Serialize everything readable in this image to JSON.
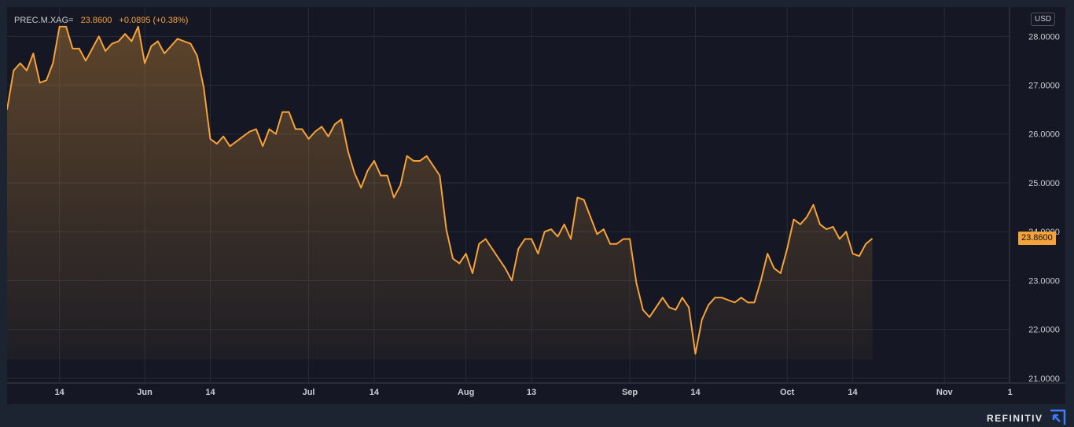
{
  "legend": {
    "symbol": "PREC.M.XAG=",
    "last": "23.8600",
    "change": "+0.0895 (+0.38%)"
  },
  "currency": "USD",
  "last_price_tag": "23.8600",
  "brand": "REFINITIV",
  "colors": {
    "line": "#f5a23a",
    "background": "#151824",
    "outer": "#1c2331",
    "grid": "#262b38",
    "text": "#c9ccd3"
  },
  "chart_data": {
    "type": "area",
    "series": [
      {
        "values": [
          26.5,
          27.3,
          27.45,
          27.3,
          27.65,
          27.05,
          27.1,
          27.45,
          28.2,
          28.2,
          27.75,
          27.75,
          27.5,
          27.75,
          28.0,
          27.7,
          27.85,
          27.9,
          28.05,
          27.9,
          28.2,
          27.45,
          27.8,
          27.9,
          27.65,
          27.8,
          27.95,
          27.9,
          27.85,
          27.6,
          26.95,
          25.9,
          25.8,
          25.95,
          25.75,
          25.85,
          25.95,
          26.05,
          26.1,
          25.75,
          26.1,
          26.0,
          26.45,
          26.45,
          26.1,
          26.1,
          25.9,
          26.05,
          26.15,
          25.95,
          26.2,
          26.3,
          25.65,
          25.2,
          24.9,
          25.25,
          25.45,
          25.15,
          25.15,
          24.7,
          24.95,
          25.55,
          25.45,
          25.45,
          25.55,
          25.35,
          25.15,
          24.05,
          23.45,
          23.35,
          23.55,
          23.15,
          23.75,
          23.85,
          23.65,
          23.45,
          23.25,
          23.0,
          23.65,
          23.85,
          23.85,
          23.55,
          24.0,
          24.05,
          23.9,
          24.15,
          23.85,
          24.7,
          24.65,
          24.3,
          23.95,
          24.05,
          23.75,
          23.75,
          23.85,
          23.85,
          22.95,
          22.4,
          22.25,
          22.45,
          22.65,
          22.45,
          22.4,
          22.65,
          22.45,
          21.5,
          22.2,
          22.5,
          22.65,
          22.65,
          22.6,
          22.55,
          22.65,
          22.55,
          22.55,
          23.0,
          23.55,
          23.25,
          23.15,
          23.65,
          24.25,
          24.15,
          24.3,
          24.55,
          24.15,
          24.05,
          24.1,
          23.85,
          24.0,
          23.55,
          23.5,
          23.75,
          23.86
        ]
      }
    ],
    "ylim": [
      20.9,
      28.6
    ],
    "yticks": [
      {
        "value": 21,
        "label": "21.0000"
      },
      {
        "value": 22,
        "label": "22.0000"
      },
      {
        "value": 23,
        "label": "23.0000"
      },
      {
        "value": 24,
        "label": "24.0000"
      },
      {
        "value": 25,
        "label": "25.0000"
      },
      {
        "value": 26,
        "label": "26.0000"
      },
      {
        "value": 27,
        "label": "27.0000"
      },
      {
        "value": 28,
        "label": "28.0000"
      }
    ],
    "xticks": [
      {
        "index": 8,
        "label": "14"
      },
      {
        "index": 21,
        "label": "Jun"
      },
      {
        "index": 31,
        "label": "14"
      },
      {
        "index": 46,
        "label": "Jul"
      },
      {
        "index": 56,
        "label": "14"
      },
      {
        "index": 70,
        "label": "Aug"
      },
      {
        "index": 80,
        "label": "13"
      },
      {
        "index": 95,
        "label": "Sep"
      },
      {
        "index": 105,
        "label": "14"
      },
      {
        "index": 119,
        "label": "Oct"
      },
      {
        "index": 129,
        "label": "14"
      },
      {
        "index": 143,
        "label": "Nov"
      },
      {
        "index": 153,
        "label": "1"
      }
    ],
    "grid": true
  }
}
